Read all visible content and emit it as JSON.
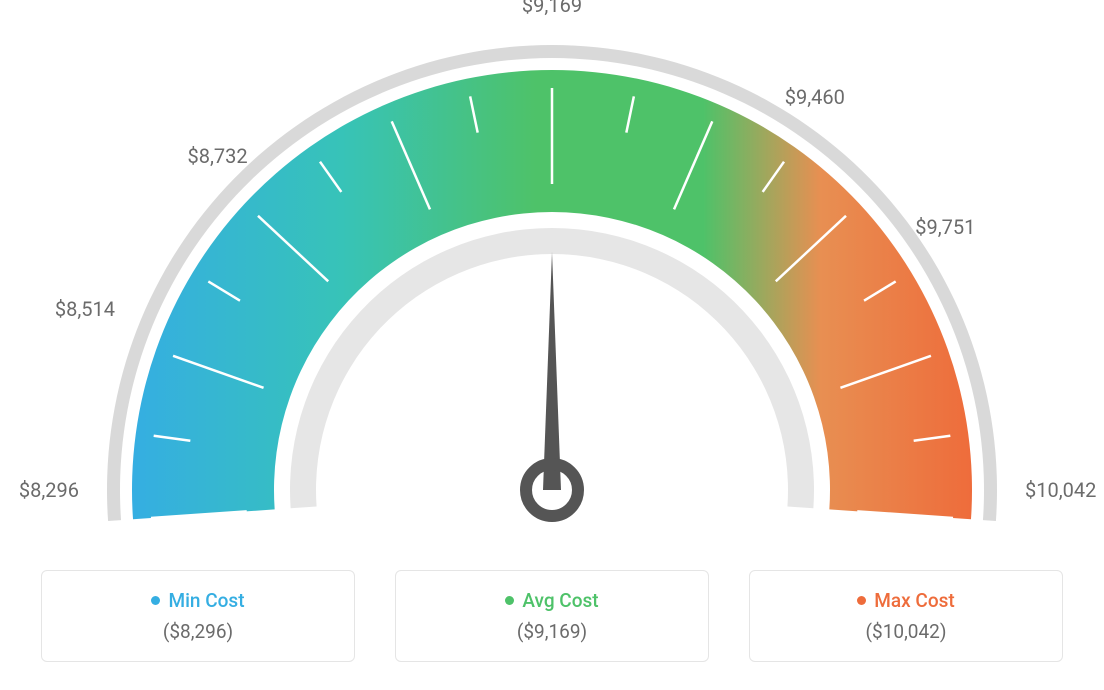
{
  "gauge": {
    "type": "gauge",
    "min_value": 8296,
    "avg_value": 9169,
    "max_value": 10042,
    "needle_value": 9169,
    "outer_ring_color": "#d9d9d9",
    "inner_ring_color": "#e6e6e6",
    "gradient_colors": {
      "blue": "#35aee2",
      "teal": "#37c3b8",
      "green": "#4ec269",
      "orange_mid": "#e88f52",
      "orange": "#ee6c3b"
    },
    "tick_mark_color": "#ffffff",
    "tick_mark_width": 2.5,
    "needle_color": "#555555",
    "background_color": "#ffffff",
    "tick_labels": [
      {
        "value": "$8,296",
        "angle_deg": 180
      },
      {
        "value": "$8,514",
        "angle_deg": 157.5
      },
      {
        "value": "$8,732",
        "angle_deg": 135
      },
      {
        "value": "$9,169",
        "angle_deg": 90
      },
      {
        "value": "$9,460",
        "angle_deg": 56.25
      },
      {
        "value": "$9,751",
        "angle_deg": 33.75
      },
      {
        "value": "$10,042",
        "angle_deg": 0
      }
    ],
    "tick_label_color": "#6b6b6b",
    "tick_label_fontsize": 20,
    "major_tick_count": 9,
    "minor_tick_between": 1
  },
  "legend": {
    "min": {
      "label": "Min Cost",
      "value": "($8,296)",
      "color": "#35aee2"
    },
    "avg": {
      "label": "Avg Cost",
      "value": "($9,169)",
      "color": "#4ec269"
    },
    "max": {
      "label": "Max Cost",
      "value": "($10,042)",
      "color": "#ee6c3b"
    },
    "card_border_color": "#e5e5e5",
    "value_color": "#6b6b6b"
  }
}
